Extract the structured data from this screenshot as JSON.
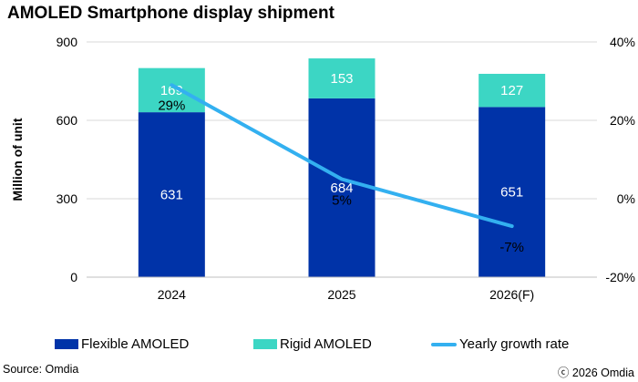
{
  "chart_data": {
    "type": "bar",
    "title": "AMOLED Smartphone display shipment",
    "ylabel": "Million of unit",
    "categories": [
      "2024",
      "2025",
      "2026(F)"
    ],
    "ylim": [
      0,
      900
    ],
    "yticks": [
      "0",
      "300",
      "600",
      "900"
    ],
    "y2lim": [
      -20,
      40
    ],
    "y2ticks": [
      "-20%",
      "0%",
      "20%",
      "40%"
    ],
    "stacked": true,
    "grid": true,
    "legend_position": "bottom",
    "series": [
      {
        "name": "Flexible AMOLED",
        "type": "bar",
        "values": [
          631,
          684,
          651
        ],
        "labels": [
          "631",
          "684",
          "651"
        ],
        "color": "#0033A8"
      },
      {
        "name": "Rigid AMOLED",
        "type": "bar",
        "values": [
          169,
          153,
          127
        ],
        "labels": [
          "169",
          "153",
          "127"
        ],
        "color": "#3CD6C4"
      },
      {
        "name": "Yearly growth rate",
        "type": "line",
        "axis": "secondary",
        "values": [
          29,
          5,
          -7
        ],
        "labels": [
          "29%",
          "5%",
          "-7%"
        ],
        "color": "#33B0F0"
      }
    ]
  },
  "footer": {
    "source": "Source: Omdia",
    "copyright": "ⓒ 2026 Omdia"
  }
}
